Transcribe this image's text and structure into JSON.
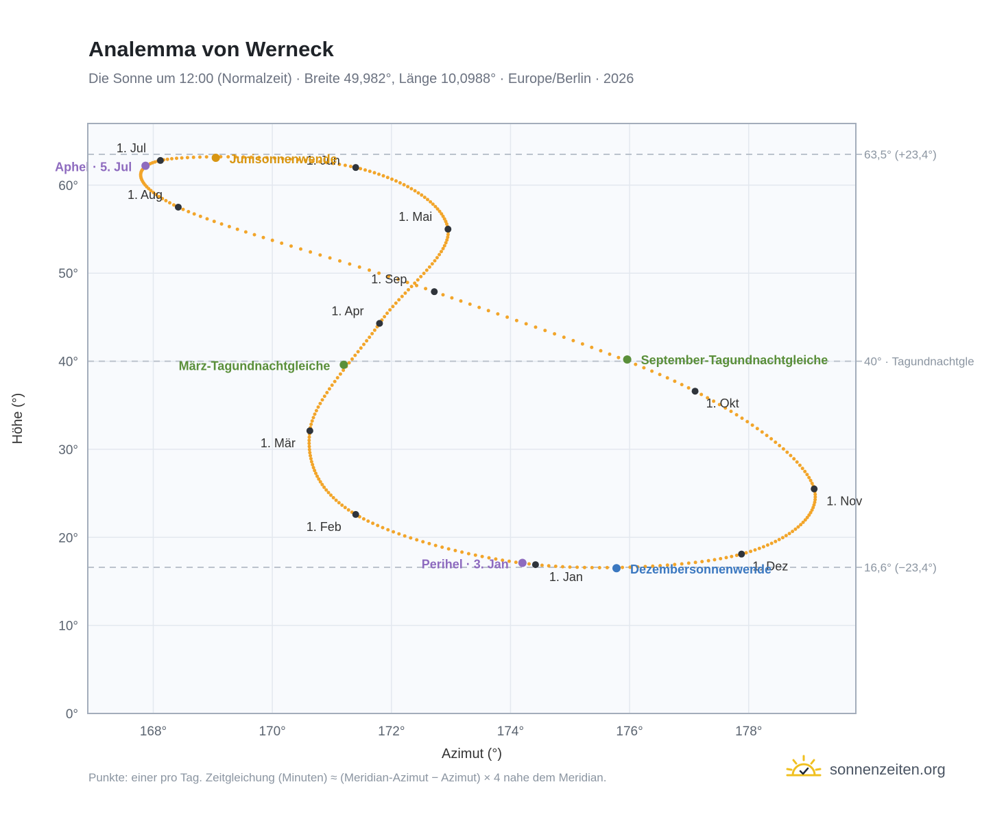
{
  "header": {
    "title": "Analemma von Werneck",
    "subtitle": "Die Sonne um 12:00 (Normalzeit) · Breite 49,982°, Länge 10,0988° · Europe/Berlin · 2026"
  },
  "footer": {
    "note": "Punkte: einer pro Tag. Zeitgleichung (Minuten) ≈ (Meridian-Azimut − Azimut) × 4 nahe dem Meridian.",
    "brand": "sonnenzeiten.org"
  },
  "colors": {
    "curve": "#f2a52a",
    "month_point": "#2f343b",
    "equinox": "#5a8f3a",
    "june_solstice": "#d89612",
    "december_solstice": "#3b78c0",
    "apsis": "#8e6bbf",
    "plot_bg": "#f8fafd",
    "grid": "#e3e8ef",
    "frame": "#a3adbb",
    "ref_line": "#b7bfc9"
  },
  "icons": {
    "brand": "sun-check-icon"
  },
  "chart_data": {
    "type": "scatter",
    "xlabel": "Azimut (°)",
    "ylabel": "Höhe (°)",
    "xlim": [
      166.9,
      179.8
    ],
    "ylim": [
      0,
      67
    ],
    "xticks": [
      168,
      170,
      172,
      174,
      176,
      178
    ],
    "xtick_labels": [
      "168°",
      "170°",
      "172°",
      "174°",
      "176°",
      "178°"
    ],
    "yticks": [
      0,
      10,
      20,
      30,
      40,
      50,
      60
    ],
    "ytick_labels": [
      "0°",
      "10°",
      "20°",
      "30°",
      "40°",
      "50°",
      "60°"
    ],
    "grid": true,
    "points_per_day": 1,
    "series": [
      {
        "points": [
          [
            174.42,
            16.9
          ],
          [
            171.4,
            22.6
          ],
          [
            170.63,
            32.1
          ],
          [
            171.8,
            44.3
          ],
          [
            172.95,
            55.0
          ],
          [
            171.4,
            62.0
          ],
          [
            168.12,
            62.8
          ],
          [
            168.42,
            57.5
          ],
          [
            172.72,
            47.9
          ],
          [
            177.1,
            36.6
          ],
          [
            179.1,
            25.5
          ],
          [
            177.88,
            18.1
          ],
          [
            174.42,
            16.9
          ]
        ]
      }
    ],
    "months": [
      {
        "label": "1. Jan",
        "az": 174.42,
        "alt": 16.9
      },
      {
        "label": "1. Feb",
        "az": 171.4,
        "alt": 22.6
      },
      {
        "label": "1. Mär",
        "az": 170.63,
        "alt": 32.1
      },
      {
        "label": "1. Apr",
        "az": 171.8,
        "alt": 44.3
      },
      {
        "label": "1. Mai",
        "az": 172.95,
        "alt": 55.0
      },
      {
        "label": "1. Jun",
        "az": 171.4,
        "alt": 62.0
      },
      {
        "label": "1. Jul",
        "az": 168.12,
        "alt": 62.8
      },
      {
        "label": "1. Aug",
        "az": 168.42,
        "alt": 57.5
      },
      {
        "label": "1. Sep",
        "az": 172.72,
        "alt": 47.9
      },
      {
        "label": "1. Okt",
        "az": 177.1,
        "alt": 36.6
      },
      {
        "label": "1. Nov",
        "az": 179.1,
        "alt": 25.5
      },
      {
        "label": "1. Dez",
        "az": 177.88,
        "alt": 18.1
      }
    ],
    "events": [
      {
        "label": "Junisonnenwende",
        "az": 169.05,
        "alt": 63.1,
        "color": "#d89612"
      },
      {
        "label": "Dezembersonnenwende",
        "az": 175.78,
        "alt": 16.5,
        "color": "#3b78c0"
      },
      {
        "label": "März-Tagundnachtgleiche",
        "az": 171.2,
        "alt": 39.6,
        "color": "#5a8f3a"
      },
      {
        "label": "September-Tagundnachtgleiche",
        "az": 175.96,
        "alt": 40.2,
        "color": "#5a8f3a"
      },
      {
        "label": "Aphel · 5. Jul",
        "az": 167.87,
        "alt": 62.2,
        "color": "#8e6bbf"
      },
      {
        "label": "Perihel · 3. Jan",
        "az": 174.2,
        "alt": 17.1,
        "color": "#8e6bbf"
      }
    ],
    "reference_lines": [
      {
        "alt": 63.5,
        "label": "63,5° (+23,4°)"
      },
      {
        "alt": 40.0,
        "label": "40° · Tagundnachtgle"
      },
      {
        "alt": 16.6,
        "label": "16,6° (−23,4°)"
      }
    ]
  }
}
